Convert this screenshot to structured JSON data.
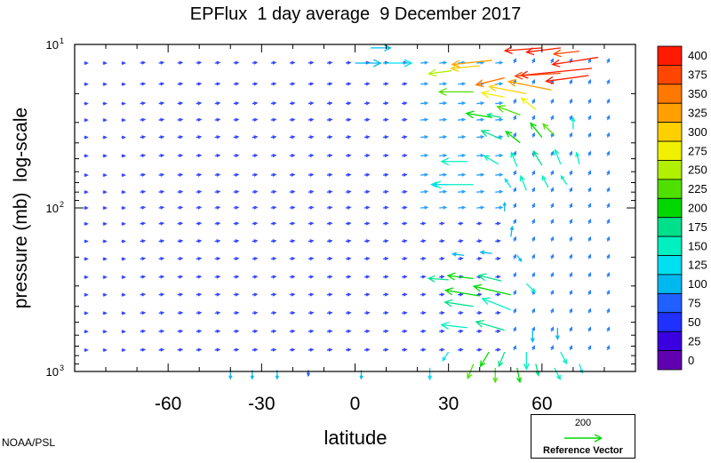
{
  "chart_data": {
    "type": "vector-field",
    "title": "EPFlux  1 day average  9 December 2017",
    "xlabel": "latitude",
    "ylabel": "pressure (mb)  log-scale",
    "x_ticks": [
      "-60",
      "-30",
      "0",
      "30",
      "60"
    ],
    "x_tick_values": [
      -60,
      -30,
      0,
      30,
      60
    ],
    "xlim": [
      -90,
      90
    ],
    "y_scale": "log",
    "y_ticks": [
      {
        "base": "10",
        "exp": "1",
        "value": 10
      },
      {
        "base": "10",
        "exp": "2",
        "value": 100
      },
      {
        "base": "10",
        "exp": "3",
        "value": 1000
      }
    ],
    "ylim": [
      1000,
      10
    ],
    "colorbar": {
      "labels": [
        "400",
        "375",
        "350",
        "325",
        "300",
        "275",
        "250",
        "225",
        "200",
        "175",
        "150",
        "125",
        "100",
        "75",
        "50",
        "25",
        "0"
      ],
      "colors": [
        "#ff1a00",
        "#ff4600",
        "#ff7800",
        "#ffa000",
        "#ffd000",
        "#f0f000",
        "#b0f000",
        "#50e000",
        "#00d800",
        "#00e08a",
        "#00f0c0",
        "#00e0f0",
        "#00b8f0",
        "#2060ff",
        "#2030ff",
        "#3a00e0",
        "#6000b0"
      ]
    },
    "reference_vector": {
      "value": "200",
      "label": "Reference Vector"
    },
    "credit": "NOAA/PSL",
    "vectors": [
      {
        "lat": 9,
        "p": 13,
        "dx": 10,
        "dy": 0,
        "mag": 120
      },
      {
        "lat": 0,
        "p": 13,
        "dx": 9,
        "dy": 0,
        "mag": 110
      },
      {
        "lat": 5,
        "p": 10.5,
        "dx": 7,
        "dy": 0,
        "mag": 90
      },
      {
        "lat": 72,
        "p": 11,
        "dx": -9,
        "dy": -1,
        "mag": 380
      },
      {
        "lat": 66,
        "p": 10.5,
        "dx": -12,
        "dy": -1.5,
        "mag": 400
      },
      {
        "lat": 60,
        "p": 10.5,
        "dx": -13,
        "dy": -1,
        "mag": 400
      },
      {
        "lat": 78,
        "p": 12,
        "dx": -16,
        "dy": -2.5,
        "mag": 400
      },
      {
        "lat": 76,
        "p": 14,
        "dx": -25,
        "dy": -2.5,
        "mag": 400
      },
      {
        "lat": 75,
        "p": 15.5,
        "dx": -15,
        "dy": -2,
        "mag": 400
      },
      {
        "lat": 66,
        "p": 15,
        "dx": -16,
        "dy": -1,
        "mag": 380
      },
      {
        "lat": 44,
        "p": 12.5,
        "dx": -14,
        "dy": -1.5,
        "mag": 320
      },
      {
        "lat": 40,
        "p": 13.5,
        "dx": -10,
        "dy": -1,
        "mag": 300
      },
      {
        "lat": 31,
        "p": 14.5,
        "dx": -8,
        "dy": -1,
        "mag": 260
      },
      {
        "lat": 48,
        "p": 16,
        "dx": -10,
        "dy": -2.5,
        "mag": 350
      },
      {
        "lat": 63,
        "p": 19,
        "dx": -15,
        "dy": 3,
        "mag": 330
      },
      {
        "lat": 55,
        "p": 20,
        "dx": -13,
        "dy": 2.5,
        "mag": 300
      },
      {
        "lat": 48,
        "p": 21,
        "dx": -8,
        "dy": 1.5,
        "mag": 270
      },
      {
        "lat": 38,
        "p": 19.5,
        "dx": -12,
        "dy": 0,
        "mag": 230
      },
      {
        "lat": 58,
        "p": 25,
        "dx": -5,
        "dy": 4,
        "mag": 270
      },
      {
        "lat": 53,
        "p": 27,
        "dx": -8,
        "dy": 3,
        "mag": 230
      },
      {
        "lat": 47,
        "p": 28,
        "dx": -5,
        "dy": 1,
        "mag": 180
      },
      {
        "lat": 44,
        "p": 28,
        "dx": -9,
        "dy": 1.5,
        "mag": 210
      },
      {
        "lat": 64,
        "p": 36,
        "dx": -4,
        "dy": 4,
        "mag": 230
      },
      {
        "lat": 60,
        "p": 37,
        "dx": -4,
        "dy": 5,
        "mag": 210
      },
      {
        "lat": 53,
        "p": 40,
        "dx": -5,
        "dy": 4,
        "mag": 190
      },
      {
        "lat": 47,
        "p": 38,
        "dx": -7,
        "dy": 3,
        "mag": 170
      },
      {
        "lat": 70,
        "p": 33,
        "dx": 0,
        "dy": 4,
        "mag": 150
      },
      {
        "lat": 72,
        "p": 54,
        "dx": -1,
        "dy": 4,
        "mag": 140
      },
      {
        "lat": 66,
        "p": 54,
        "dx": -2,
        "dy": 5,
        "mag": 160
      },
      {
        "lat": 60,
        "p": 55,
        "dx": -3,
        "dy": 5,
        "mag": 170
      },
      {
        "lat": 52,
        "p": 56,
        "dx": -2,
        "dy": 5,
        "mag": 150
      },
      {
        "lat": 46,
        "p": 54,
        "dx": -5,
        "dy": 3,
        "mag": 140
      },
      {
        "lat": 36,
        "p": 52,
        "dx": -9,
        "dy": 0,
        "mag": 150
      },
      {
        "lat": 38,
        "p": 72,
        "dx": -14,
        "dy": 0,
        "mag": 150
      },
      {
        "lat": 30,
        "p": 72,
        "dx": -6,
        "dy": 0,
        "mag": 120
      },
      {
        "lat": 68,
        "p": 72,
        "dx": -2,
        "dy": 3,
        "mag": 140
      },
      {
        "lat": 62,
        "p": 75,
        "dx": -2,
        "dy": 4,
        "mag": 150
      },
      {
        "lat": 55,
        "p": 78,
        "dx": -2,
        "dy": 5,
        "mag": 150
      },
      {
        "lat": 50,
        "p": 75,
        "dx": -2,
        "dy": 3,
        "mag": 130
      },
      {
        "lat": 48,
        "p": 105,
        "dx": 0,
        "dy": 3,
        "mag": 90
      },
      {
        "lat": 50,
        "p": 150,
        "dx": 0.5,
        "dy": 3.5,
        "mag": 110
      },
      {
        "lat": 52,
        "p": 195,
        "dx": 1.5,
        "dy": -2,
        "mag": 100
      },
      {
        "lat": 44,
        "p": 190,
        "dx": -4,
        "dy": 0.5,
        "mag": 110
      },
      {
        "lat": 35,
        "p": 195,
        "dx": -4,
        "dy": 0.5,
        "mag": 100
      },
      {
        "lat": 55,
        "p": 290,
        "dx": 3,
        "dy": -3,
        "mag": 140
      },
      {
        "lat": 47,
        "p": 280,
        "dx": -8,
        "dy": 2,
        "mag": 180
      },
      {
        "lat": 38,
        "p": 270,
        "dx": -9,
        "dy": 1,
        "mag": 200
      },
      {
        "lat": 30,
        "p": 275,
        "dx": -7,
        "dy": 0.5,
        "mag": 180
      },
      {
        "lat": 50,
        "p": 340,
        "dx": -13,
        "dy": 3,
        "mag": 200
      },
      {
        "lat": 40,
        "p": 345,
        "dx": -12,
        "dy": 2,
        "mag": 190
      },
      {
        "lat": 50,
        "p": 420,
        "dx": -10,
        "dy": 4,
        "mag": 160
      },
      {
        "lat": 38,
        "p": 400,
        "dx": -10,
        "dy": 1.5,
        "mag": 170
      },
      {
        "lat": 48,
        "p": 560,
        "dx": -10,
        "dy": 3,
        "mag": 170
      },
      {
        "lat": 36,
        "p": 540,
        "dx": -9,
        "dy": 1,
        "mag": 160
      },
      {
        "lat": 65,
        "p": 540,
        "dx": 0,
        "dy": -4,
        "mag": 110
      },
      {
        "lat": 57,
        "p": 560,
        "dx": 0,
        "dy": -4,
        "mag": 100
      },
      {
        "lat": 48,
        "p": 760,
        "dx": -2,
        "dy": -5,
        "mag": 170
      },
      {
        "lat": 55,
        "p": 760,
        "dx": 0,
        "dy": -6,
        "mag": 150
      },
      {
        "lat": 43,
        "p": 760,
        "dx": -3,
        "dy": -5,
        "mag": 200
      },
      {
        "lat": 38,
        "p": 900,
        "dx": -2,
        "dy": -5,
        "mag": 220
      },
      {
        "lat": 45,
        "p": 950,
        "dx": 0,
        "dy": -5,
        "mag": 230
      },
      {
        "lat": 52,
        "p": 950,
        "dx": 1,
        "dy": -5,
        "mag": 200
      },
      {
        "lat": 58,
        "p": 900,
        "dx": 1,
        "dy": -4,
        "mag": 180
      },
      {
        "lat": 66,
        "p": 760,
        "dx": 2,
        "dy": -4,
        "mag": 140
      },
      {
        "lat": 64,
        "p": 950,
        "dx": 2,
        "dy": -4,
        "mag": 140
      },
      {
        "lat": 72,
        "p": 900,
        "dx": 1,
        "dy": -3,
        "mag": 120
      },
      {
        "lat": 30,
        "p": 760,
        "dx": -2,
        "dy": -3,
        "mag": 120
      },
      {
        "lat": 24,
        "p": 950,
        "dx": 0,
        "dy": -4,
        "mag": 130
      },
      {
        "lat": -40,
        "p": 980,
        "dx": 0,
        "dy": -3,
        "mag": 100
      },
      {
        "lat": -33,
        "p": 980,
        "dx": 0,
        "dy": -3,
        "mag": 100
      },
      {
        "lat": -25,
        "p": 980,
        "dx": 0,
        "dy": -3,
        "mag": 90
      },
      {
        "lat": -15,
        "p": 980,
        "dx": 0,
        "dy": -2,
        "mag": 80
      },
      {
        "lat": 2,
        "p": 980,
        "dx": 0,
        "dy": -3,
        "mag": 90
      }
    ]
  }
}
